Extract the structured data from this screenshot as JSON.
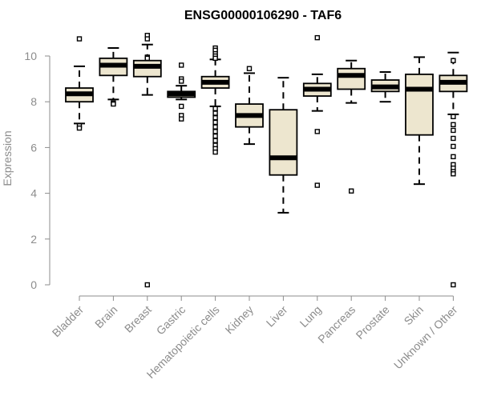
{
  "chart_data": {
    "type": "boxplot",
    "title": "ENSG00000106290 - TAF6",
    "xlabel": "",
    "ylabel": "Expression",
    "ylim": [
      0,
      10
    ],
    "y_ticks": [
      0,
      2,
      4,
      6,
      8,
      10
    ],
    "categories": [
      "Bladder",
      "Brain",
      "Breast",
      "Gastric",
      "Hematopoietic cells",
      "Kidney",
      "Liver",
      "Lung",
      "Pancreas",
      "Prostate",
      "Skin",
      "Unknown / Other"
    ],
    "boxes": [
      {
        "name": "Bladder",
        "whisker_low": 7.05,
        "q1": 8.0,
        "median": 8.35,
        "q3": 8.6,
        "whisker_high": 9.55,
        "outliers": [
          10.75,
          6.95,
          6.85
        ]
      },
      {
        "name": "Brain",
        "whisker_low": 8.1,
        "q1": 9.15,
        "median": 9.6,
        "q3": 9.9,
        "whisker_high": 10.35,
        "outliers": [
          7.95,
          7.9
        ]
      },
      {
        "name": "Breast",
        "whisker_low": 8.3,
        "q1": 9.1,
        "median": 9.55,
        "q3": 9.8,
        "whisker_high": 10.5,
        "outliers": [
          10.9,
          10.75,
          9.95,
          9.9,
          0.0
        ]
      },
      {
        "name": "Gastric",
        "whisker_low": 8.1,
        "q1": 8.2,
        "median": 8.35,
        "q3": 8.45,
        "whisker_high": 8.7,
        "outliers": [
          9.6,
          9.0,
          8.9,
          7.8,
          7.4,
          7.25
        ]
      },
      {
        "name": "Hematopoietic cells",
        "whisker_low": 7.8,
        "q1": 8.6,
        "median": 8.85,
        "q3": 9.1,
        "whisker_high": 9.85,
        "outliers": [
          10.35,
          10.25,
          10.1,
          10.0,
          9.9,
          7.7,
          7.5,
          7.3,
          7.1,
          6.9,
          6.7,
          6.5,
          6.3,
          6.1,
          5.95,
          5.8
        ]
      },
      {
        "name": "Kidney",
        "whisker_low": 6.15,
        "q1": 6.9,
        "median": 7.4,
        "q3": 7.9,
        "whisker_high": 9.25,
        "outliers": [
          9.45
        ]
      },
      {
        "name": "Liver",
        "whisker_low": 3.15,
        "q1": 4.8,
        "median": 5.55,
        "q3": 7.65,
        "whisker_high": 9.05,
        "outliers": []
      },
      {
        "name": "Lung",
        "whisker_low": 7.6,
        "q1": 8.25,
        "median": 8.55,
        "q3": 8.8,
        "whisker_high": 9.2,
        "outliers": [
          10.8,
          6.7,
          4.35
        ]
      },
      {
        "name": "Pancreas",
        "whisker_low": 7.95,
        "q1": 8.55,
        "median": 9.15,
        "q3": 9.45,
        "whisker_high": 9.8,
        "outliers": [
          4.1
        ]
      },
      {
        "name": "Prostate",
        "whisker_low": 8.0,
        "q1": 8.45,
        "median": 8.65,
        "q3": 8.95,
        "whisker_high": 9.3,
        "outliers": []
      },
      {
        "name": "Skin",
        "whisker_low": 4.4,
        "q1": 6.55,
        "median": 8.55,
        "q3": 9.2,
        "whisker_high": 9.95,
        "outliers": []
      },
      {
        "name": "Unknown / Other",
        "whisker_low": 7.45,
        "q1": 8.45,
        "median": 8.85,
        "q3": 9.15,
        "whisker_high": 10.15,
        "outliers": [
          9.8,
          7.35,
          7.0,
          6.75,
          6.4,
          6.05,
          5.6,
          5.25,
          5.1,
          4.95,
          4.85,
          0.0
        ]
      }
    ],
    "colors": {
      "box_fill": "#ede6cf",
      "box_stroke": "#000000",
      "axis": "#8c8c8c",
      "text": "#8c8c8c",
      "title": "#000000"
    }
  }
}
